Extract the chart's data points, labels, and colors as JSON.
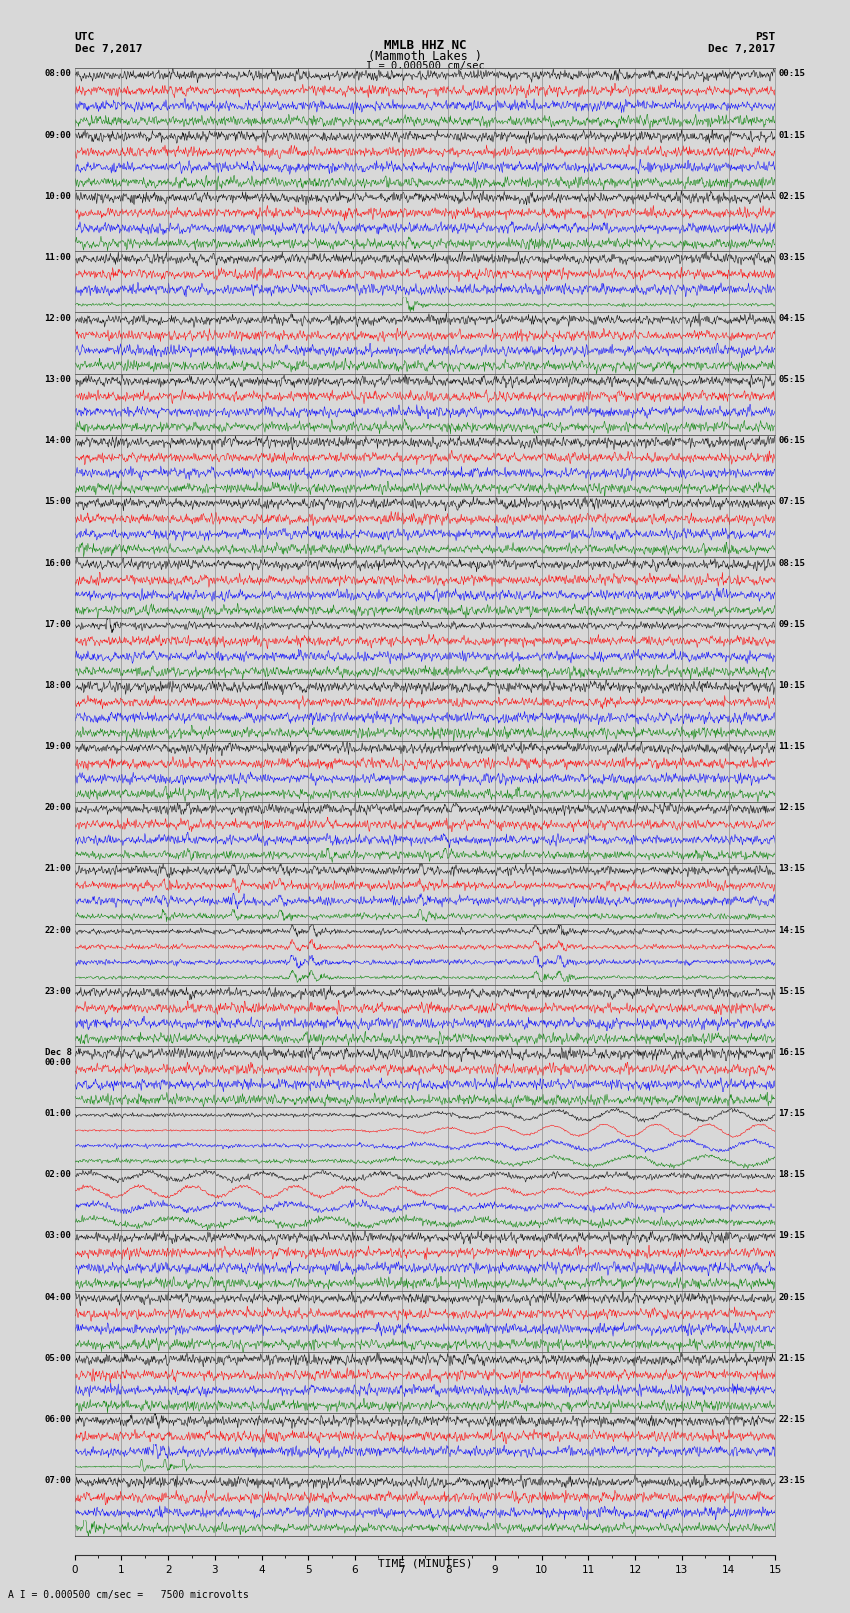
{
  "title_line1": "MMLB HHZ NC",
  "title_line2": "(Mammoth Lakes )",
  "scale_label": "I = 0.000500 cm/sec",
  "bottom_label": "A I = 0.000500 cm/sec =   7500 microvolts",
  "utc_label": "UTC",
  "utc_date": "Dec 7,2017",
  "pst_label": "PST",
  "pst_date": "Dec 7,2017",
  "xlabel": "TIME (MINUTES)",
  "left_times": [
    "08:00",
    "09:00",
    "10:00",
    "11:00",
    "12:00",
    "13:00",
    "14:00",
    "15:00",
    "16:00",
    "17:00",
    "18:00",
    "19:00",
    "20:00",
    "21:00",
    "22:00",
    "23:00",
    "Dec 8\n00:00",
    "01:00",
    "02:00",
    "03:00",
    "04:00",
    "05:00",
    "06:00",
    "07:00"
  ],
  "right_times": [
    "00:15",
    "01:15",
    "02:15",
    "03:15",
    "04:15",
    "05:15",
    "06:15",
    "07:15",
    "08:15",
    "09:15",
    "10:15",
    "11:15",
    "12:15",
    "13:15",
    "14:15",
    "15:15",
    "16:15",
    "17:15",
    "18:15",
    "19:15",
    "20:15",
    "21:15",
    "22:15",
    "23:15"
  ],
  "n_rows": 24,
  "n_traces_per_row": 4,
  "trace_colors": [
    "black",
    "red",
    "blue",
    "green"
  ],
  "minutes": 15,
  "bg_color": "#d8d8d8",
  "plot_bg": "#d8d8d8",
  "grid_color": "#888888",
  "fig_width": 8.5,
  "fig_height": 16.13
}
